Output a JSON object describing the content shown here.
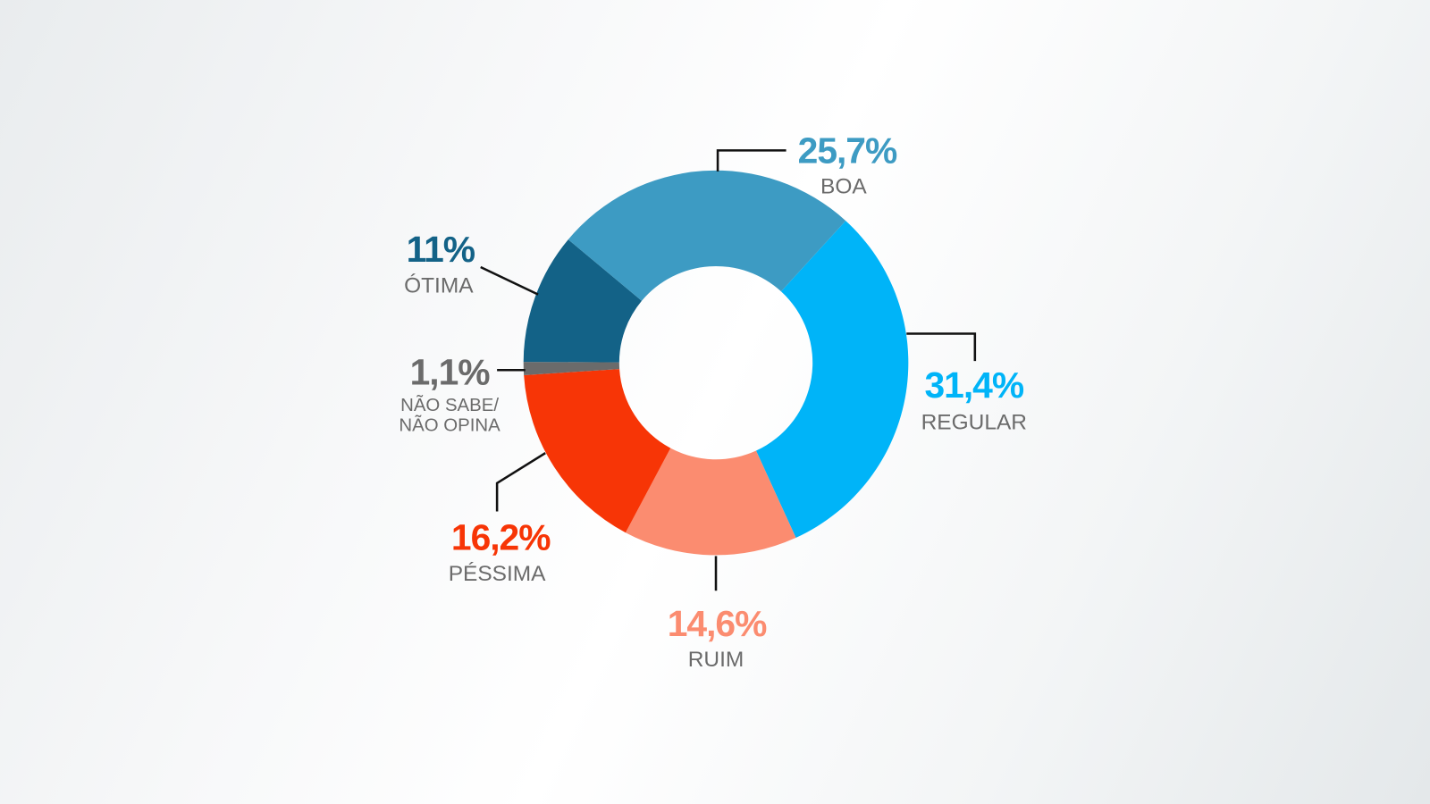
{
  "chart_data": {
    "type": "pie",
    "variant": "donut",
    "start": "REGULAR segment begins upper-right, clockwise",
    "slices": [
      {
        "key": "regular",
        "label": "REGULAR",
        "value": 31.4,
        "value_label": "31,4%",
        "color": "#00b4f8"
      },
      {
        "key": "ruim",
        "label": "RUIM",
        "value": 14.6,
        "value_label": "14,6%",
        "color": "#fb8c70"
      },
      {
        "key": "pessima",
        "label": "PÉSSIMA",
        "value": 16.2,
        "value_label": "16,2%",
        "color": "#f73506"
      },
      {
        "key": "ns",
        "label": "NÃO SABE/ NÃO OPINA",
        "label_lines": [
          "NÃO SABE/",
          "NÃO OPINA"
        ],
        "value": 1.1,
        "value_label": "1,1%",
        "color": "#6b6b6b"
      },
      {
        "key": "otima",
        "label": "ÓTIMA",
        "value": 11,
        "value_label": "11%",
        "color": "#136287"
      },
      {
        "key": "boa",
        "label": "BOA",
        "value": 25.7,
        "value_label": "25,7%",
        "color": "#3d9bc3"
      }
    ]
  }
}
